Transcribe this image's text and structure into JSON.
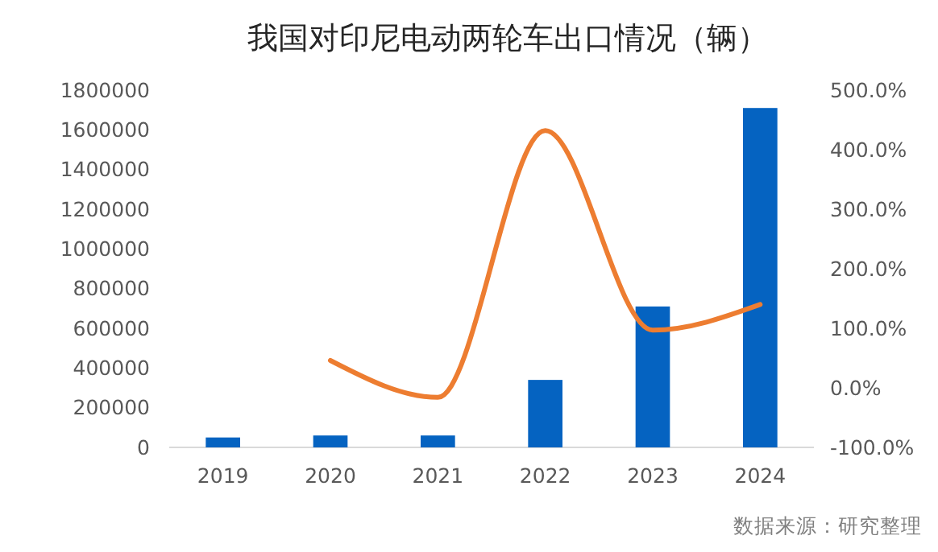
{
  "chart_data": {
    "type": "bar",
    "title": "我国对印尼电动两轮车出口情况（辆）",
    "categories": [
      "2019",
      "2020",
      "2021",
      "2022",
      "2023",
      "2024"
    ],
    "series": [
      {
        "color": "#0563c1",
        "values": [
          50000,
          60000,
          60000,
          340000,
          710000,
          1710000
        ]
      },
      {
        "type": "line",
        "axis": "y2",
        "color": "#ed7d31",
        "values": [
          null,
          46,
          -16,
          432,
          97,
          140
        ]
      }
    ],
    "ylim": [
      0,
      1800000
    ],
    "yticks": [
      0,
      200000,
      400000,
      600000,
      800000,
      1000000,
      1200000,
      1400000,
      1600000,
      1800000
    ],
    "y2lim": [
      -100,
      500
    ],
    "y2ticks": [
      {
        "value": -100,
        "label": "-100.0%"
      },
      {
        "value": 0,
        "label": "0.0%"
      },
      {
        "value": 100,
        "label": "100.0%"
      },
      {
        "value": 200,
        "label": "200.0%"
      },
      {
        "value": 300,
        "label": "300.0%"
      },
      {
        "value": 400,
        "label": "400.0%"
      },
      {
        "value": 500,
        "label": "500.0%"
      }
    ],
    "grid": false,
    "marker": "none",
    "line_style": "solid",
    "annotations": [
      "数据来源：研究整理"
    ]
  }
}
